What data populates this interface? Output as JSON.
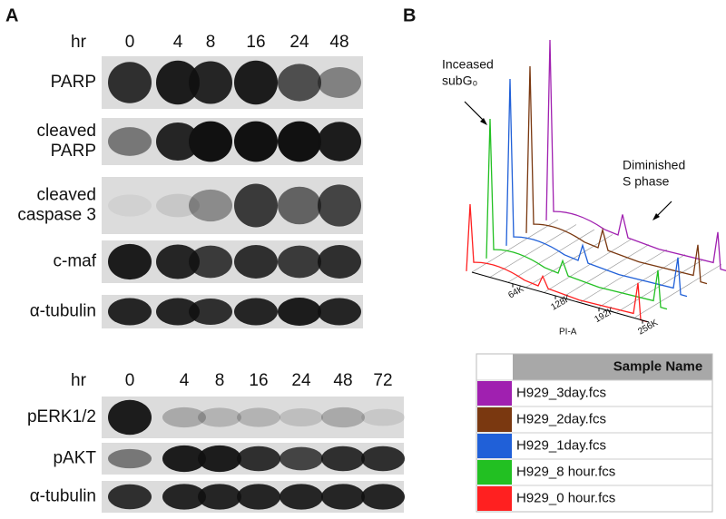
{
  "panel_a": {
    "label": "A",
    "blot_1": {
      "hr_label": "hr",
      "timepoints": [
        "0",
        "4",
        "8",
        "16",
        "24",
        "48"
      ],
      "rows": [
        [
          "PARP"
        ],
        [
          "cleaved",
          "PARP"
        ],
        [
          "cleaved",
          "caspase 3"
        ],
        [
          "c-maf"
        ],
        [
          "α-tubulin"
        ]
      ]
    },
    "blot_2": {
      "hr_label": "hr",
      "timepoints": [
        "0",
        "4",
        "8",
        "16",
        "24",
        "48",
        "72"
      ],
      "rows": [
        [
          "pERK1/2"
        ],
        [
          "pAKT"
        ],
        [
          "α-tubulin"
        ]
      ]
    }
  },
  "panel_b": {
    "label": "B",
    "annotation_left": [
      "Inceased",
      "subG₀"
    ],
    "annotation_right": [
      "Diminished",
      "S phase"
    ],
    "x_ticks": [
      "64K",
      "128K",
      "192K",
      "256K"
    ],
    "x_label": "PI-A",
    "legend_header": "Sample Name",
    "samples": [
      {
        "name": "H929_3day.fcs",
        "color": "#a020b0"
      },
      {
        "name": "H929_2day.fcs",
        "color": "#7a3810"
      },
      {
        "name": "H929_1day.fcs",
        "color": "#2060d8"
      },
      {
        "name": "H929_8 hour.fcs",
        "color": "#22c022"
      },
      {
        "name": "H929_0 hour.fcs",
        "color": "#ff2020"
      }
    ]
  }
}
